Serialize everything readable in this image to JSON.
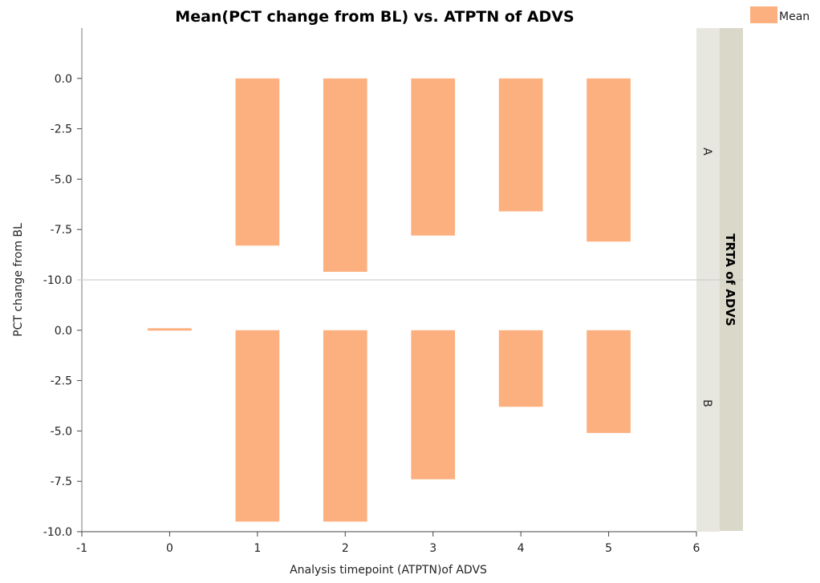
{
  "chart_data": {
    "type": "bar",
    "title": "Mean(PCT change from BL) vs. ATPTN of ADVS",
    "xlabel": "Analysis timepoint (ATPTN)of ADVS",
    "ylabel": "PCT change from BL",
    "facet_label": "TRTA of ADVS",
    "xlim": [
      -1,
      6
    ],
    "x_ticks": [
      -1,
      0,
      1,
      2,
      3,
      4,
      5,
      6
    ],
    "y_ticks": [
      "0.0",
      "-2.5",
      "-5.0",
      "-7.5",
      "-10.0"
    ],
    "legend": {
      "entries": [
        "Mean"
      ],
      "placement": "top-right"
    },
    "bar_color": "#FDB07F",
    "grid": false,
    "panels": [
      {
        "facet": "A",
        "ylim": [
          -10,
          2.5
        ],
        "x": [
          1,
          2,
          3,
          4,
          5
        ],
        "values": [
          -8.3,
          -9.6,
          -7.8,
          -6.6,
          -8.1
        ]
      },
      {
        "facet": "B",
        "ylim": [
          -10,
          2.5
        ],
        "x": [
          0,
          1,
          2,
          3,
          4,
          5
        ],
        "values": [
          0.1,
          -9.5,
          -9.5,
          -7.4,
          -3.8,
          -5.1
        ]
      }
    ]
  }
}
